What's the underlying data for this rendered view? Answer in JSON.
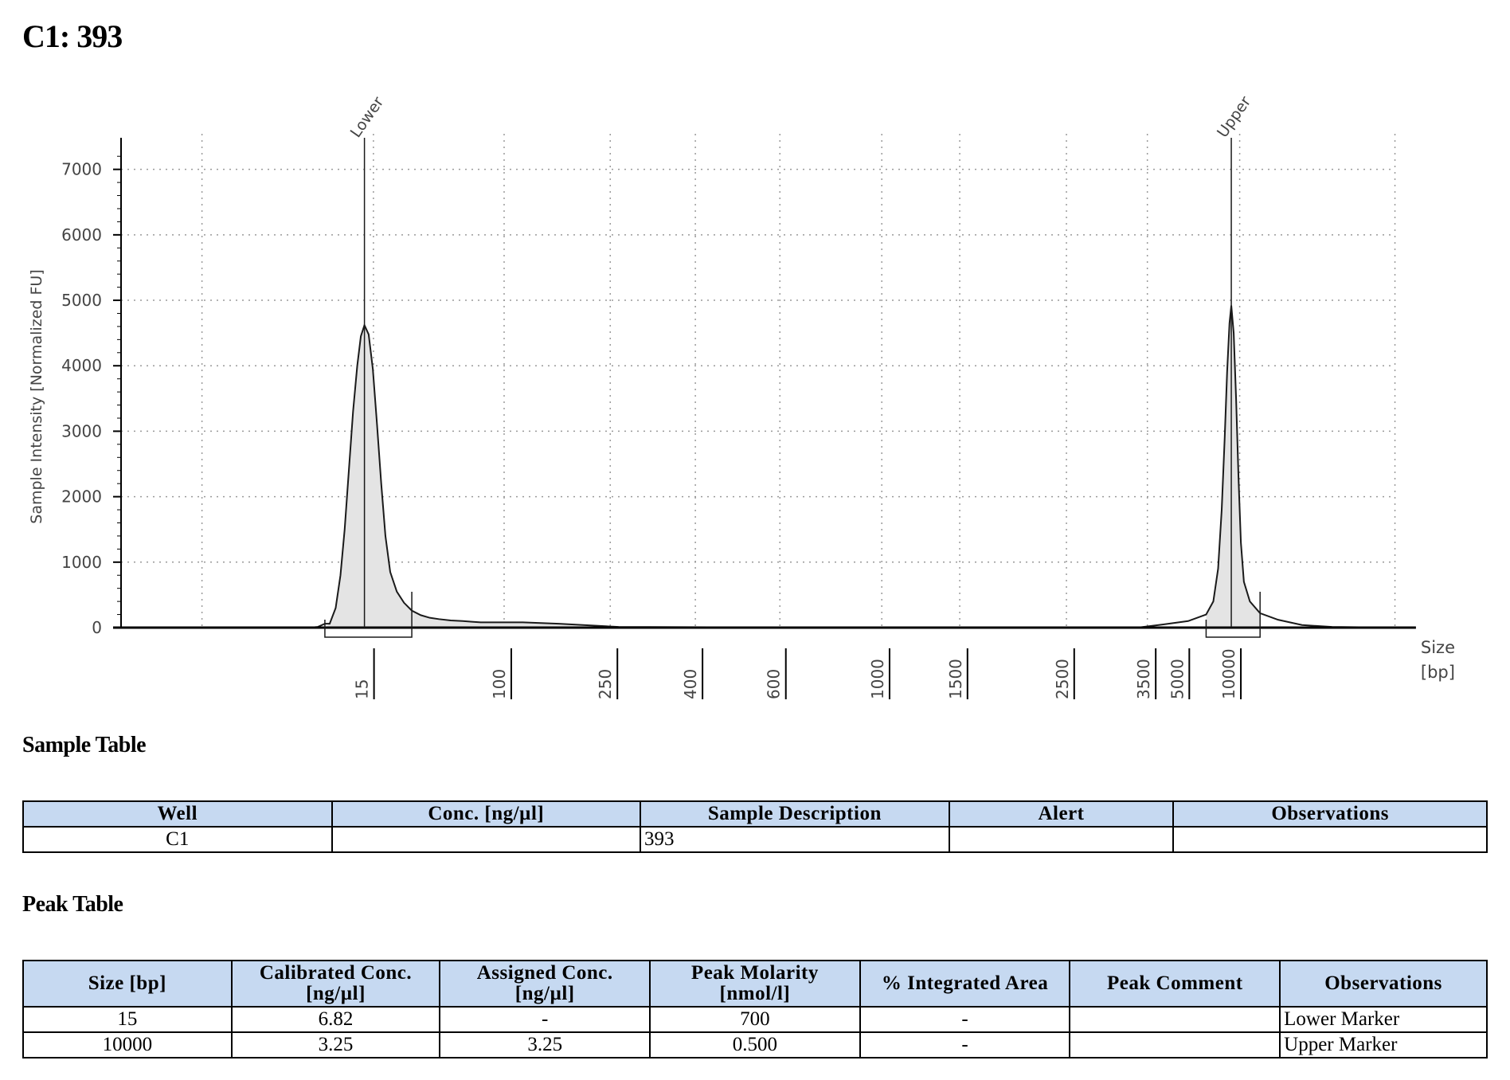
{
  "page": {
    "title": "C1: 393"
  },
  "chart_data": {
    "type": "area",
    "ylabel": "Sample Intensity [Normalized FU]",
    "xlabel": "Size\n[bp]",
    "xlabel_lines": [
      "Size",
      "[bp]"
    ],
    "ylim": [
      0,
      7300
    ],
    "yticks": [
      0,
      1000,
      2000,
      3000,
      4000,
      5000,
      6000,
      7000
    ],
    "xticks": [
      "15",
      "100",
      "250",
      "400",
      "600",
      "1000",
      "1500",
      "2500",
      "3500",
      "5000",
      "10000"
    ],
    "grid": true,
    "x_scale": "non-linear (electrophoresis migration time)",
    "series": [
      {
        "points": [
          [
            -26,
            0
          ],
          [
            -25.2,
            60
          ],
          [
            -24.2,
            300
          ],
          [
            -23.4,
            800
          ],
          [
            -22.7,
            1500
          ],
          [
            -22.0,
            2400
          ],
          [
            -21.3,
            3300
          ],
          [
            -20.6,
            4000
          ],
          [
            -20.0,
            4450
          ],
          [
            -19.4,
            4620
          ],
          [
            -18.7,
            4480
          ],
          [
            -18.0,
            3950
          ],
          [
            -17.3,
            3100
          ],
          [
            -16.6,
            2200
          ],
          [
            -15.9,
            1400
          ],
          [
            -15.1,
            850
          ],
          [
            -14.0,
            550
          ],
          [
            -12.8,
            380
          ],
          [
            -11.5,
            260
          ],
          [
            -10.0,
            190
          ],
          [
            -8.5,
            150
          ],
          [
            -7.0,
            130
          ],
          [
            -5.0,
            110
          ],
          [
            -3.0,
            100
          ],
          [
            -1.5,
            90
          ],
          [
            0,
            80
          ],
          [
            7.0,
            80
          ],
          [
            13.0,
            60
          ],
          [
            23.0,
            10
          ],
          [
            -26,
            0
          ]
        ],
        "line": [
          [
            -37.8,
            0
          ],
          [
            -34,
            0
          ],
          [
            -31,
            0
          ],
          [
            -28.5,
            0
          ],
          [
            -27.2,
            10
          ],
          [
            -26,
            60
          ],
          [
            -25.2,
            60
          ],
          [
            -24.2,
            300
          ],
          [
            -23.4,
            800
          ],
          [
            -22.7,
            1500
          ],
          [
            -22.0,
            2400
          ],
          [
            -21.3,
            3300
          ],
          [
            -20.6,
            4000
          ],
          [
            -20.0,
            4450
          ],
          [
            -19.4,
            4620
          ],
          [
            -18.7,
            4480
          ],
          [
            -18.0,
            3950
          ],
          [
            -17.3,
            3100
          ],
          [
            -16.6,
            2200
          ],
          [
            -15.9,
            1400
          ],
          [
            -15.1,
            850
          ],
          [
            -14.0,
            550
          ],
          [
            -12.8,
            380
          ],
          [
            -11.5,
            260
          ],
          [
            -10.0,
            190
          ],
          [
            -8.5,
            150
          ],
          [
            -7.0,
            130
          ],
          [
            -5.0,
            110
          ],
          [
            -3.0,
            100
          ],
          [
            -1.5,
            90
          ],
          [
            0,
            80
          ],
          [
            7.0,
            80
          ],
          [
            13.0,
            60
          ],
          [
            23.0,
            10
          ],
          [
            40,
            5
          ],
          [
            80,
            5
          ],
          [
            110,
            5
          ],
          [
            114,
            50
          ],
          [
            118,
            100
          ],
          [
            121,
            200
          ],
          [
            122.2,
            400
          ],
          [
            123.0,
            900
          ],
          [
            123.6,
            1800
          ],
          [
            124.1,
            2900
          ],
          [
            124.5,
            3900
          ],
          [
            124.9,
            4650
          ],
          [
            125.2,
            4920
          ],
          [
            125.6,
            4500
          ],
          [
            126.0,
            3500
          ],
          [
            126.4,
            2300
          ],
          [
            126.8,
            1300
          ],
          [
            127.3,
            700
          ],
          [
            128.3,
            400
          ],
          [
            130,
            220
          ],
          [
            133,
            120
          ],
          [
            137,
            40
          ],
          [
            142,
            10
          ],
          [
            148,
            5
          ],
          [
            152,
            0
          ]
        ]
      }
    ],
    "peak_labels": [
      "Lower",
      "Upper"
    ],
    "markers": [
      {
        "label": "Lower",
        "x": -19.4,
        "line_top": 7300,
        "bracket": [
          -26,
          -11.5
        ]
      },
      {
        "label": "Upper",
        "x": 125.2,
        "line_top": 7300,
        "bracket": [
          121,
          130
        ]
      }
    ]
  },
  "sample_table": {
    "title": "Sample Table",
    "headers": [
      "Well",
      "Conc. [ng/µl]",
      "Sample Description",
      "Alert",
      "Observations"
    ],
    "rows": [
      [
        "C1",
        "",
        "393",
        "",
        ""
      ]
    ]
  },
  "peak_table": {
    "title": "Peak Table",
    "headers": [
      "Size [bp]",
      "Calibrated Conc.\n[ng/µl]",
      "Assigned Conc.\n[ng/µl]",
      "Peak Molarity\n[nmol/l]",
      "% Integrated Area",
      "Peak Comment",
      "Observations"
    ],
    "rows": [
      [
        "15",
        "6.82",
        "-",
        "700",
        "-",
        "",
        "Lower Marker"
      ],
      [
        "10000",
        "3.25",
        "3.25",
        "0.500",
        "-",
        "",
        "Upper Marker"
      ]
    ]
  }
}
